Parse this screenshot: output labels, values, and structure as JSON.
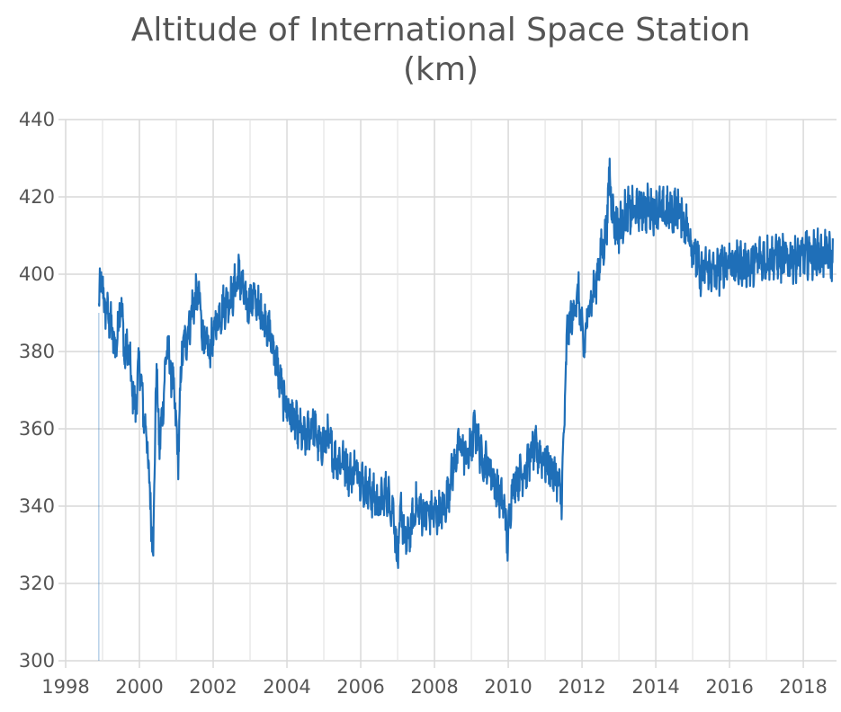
{
  "chart_data": {
    "type": "line",
    "title": "Altitude of International Space Station",
    "title_line2": "(km)",
    "xlabel": "",
    "ylabel": "",
    "xlim": [
      1998,
      2018.9
    ],
    "ylim": [
      300,
      440
    ],
    "x_ticks": [
      "1998",
      "2000",
      "2002",
      "2004",
      "2006",
      "2008",
      "2010",
      "2012",
      "2014",
      "2016",
      "2018"
    ],
    "y_ticks": [
      "300",
      "320",
      "340",
      "360",
      "380",
      "400",
      "420",
      "440"
    ],
    "grid": true,
    "line_color": "#1f6fb8",
    "series": [
      {
        "x": [
          1998.9,
          1998.95,
          1999.05,
          1999.2,
          1999.35,
          1999.5,
          1999.6,
          1999.7,
          1999.8,
          1999.9,
          2000.0,
          2000.1,
          2000.2,
          2000.3,
          2000.38,
          2000.45,
          2000.55,
          2000.65,
          2000.75,
          2000.85,
          2000.95,
          2001.05,
          2001.15,
          2001.3,
          2001.45,
          2001.6,
          2001.75,
          2001.9,
          2002.1,
          2002.3,
          2002.5,
          2002.7,
          2002.9,
          2003.1,
          2003.3,
          2003.5,
          2003.7,
          2003.9,
          2004.1,
          2004.3,
          2004.5,
          2004.7,
          2004.9,
          2005.1,
          2005.3,
          2005.5,
          2005.7,
          2005.9,
          2006.1,
          2006.3,
          2006.5,
          2006.7,
          2006.9,
          2007.0,
          2007.1,
          2007.2,
          2007.35,
          2007.5,
          2007.7,
          2007.9,
          2008.1,
          2008.3,
          2008.5,
          2008.7,
          2008.9,
          2009.1,
          2009.3,
          2009.5,
          2009.7,
          2009.9,
          2009.98,
          2010.1,
          2010.3,
          2010.5,
          2010.7,
          2010.9,
          2011.1,
          2011.3,
          2011.45,
          2011.6,
          2011.75,
          2011.9,
          2012.05,
          2012.2,
          2012.35,
          2012.5,
          2012.65,
          2012.75,
          2012.85,
          2013.0,
          2013.2,
          2013.4,
          2013.6,
          2013.8,
          2014.0,
          2014.2,
          2014.4,
          2014.6,
          2014.8,
          2015.0,
          2015.2,
          2015.4,
          2015.6,
          2015.8,
          2016.0,
          2016.2,
          2016.4,
          2016.6,
          2016.8,
          2017.0,
          2017.2,
          2017.4,
          2017.6,
          2017.8,
          2018.0,
          2018.2,
          2018.4,
          2018.6,
          2018.8
        ],
        "values": [
          390,
          400,
          392,
          388,
          380,
          394,
          378,
          382,
          370,
          365,
          378,
          365,
          358,
          340,
          328,
          376,
          355,
          368,
          382,
          375,
          368,
          352,
          380,
          384,
          392,
          395,
          382,
          380,
          388,
          392,
          394,
          400,
          392,
          394,
          390,
          386,
          378,
          368,
          364,
          360,
          357,
          362,
          355,
          358,
          352,
          352,
          348,
          350,
          345,
          343,
          340,
          344,
          338,
          325,
          340,
          330,
          334,
          340,
          338,
          338,
          338,
          340,
          350,
          356,
          352,
          360,
          352,
          350,
          344,
          340,
          330,
          345,
          348,
          350,
          355,
          353,
          350,
          348,
          342,
          385,
          390,
          395,
          380,
          393,
          396,
          405,
          410,
          426,
          414,
          412,
          416,
          416,
          417,
          417,
          417,
          416,
          416,
          417,
          413,
          408,
          400,
          402,
          400,
          402,
          404,
          402,
          403,
          402,
          404,
          404,
          405,
          404,
          404,
          404,
          405,
          405,
          405,
          405,
          404
        ]
      }
    ]
  }
}
